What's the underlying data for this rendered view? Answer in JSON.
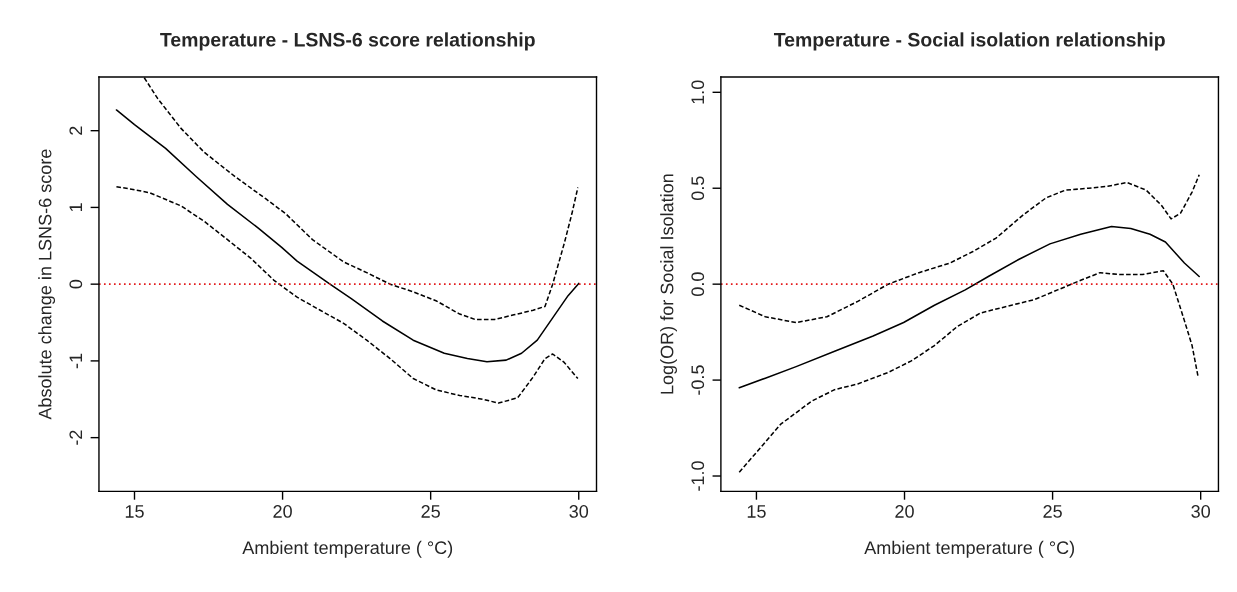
{
  "chart_data": [
    {
      "type": "line",
      "title": "Temperature - LSNS-6 score relationship",
      "xlabel": "Ambient temperature ( °C)",
      "ylabel": "Absolute change in LSNS-6 score",
      "xlim": [
        13.8,
        30.6
      ],
      "xticks": [
        15,
        20,
        25,
        30
      ],
      "ylim": [
        -2.7,
        2.7
      ],
      "yticks": [
        -2,
        -1,
        0,
        1,
        2
      ],
      "grid": false,
      "ref_lines": [
        {
          "axis": "y",
          "value": 0,
          "color": "#e31a1c",
          "line_style": "dotted"
        }
      ],
      "series": [
        {
          "color": "#000000",
          "line_style": "solid",
          "x": [
            14.39,
            15,
            16.05,
            17.09,
            18.14,
            19.18,
            19.97,
            20.49,
            21.6,
            22.32,
            23.37,
            24.41,
            25.46,
            26.24,
            26.9,
            27.55,
            28.07,
            28.6,
            29.12,
            29.64,
            30
          ],
          "values": [
            2.27,
            2.08,
            1.77,
            1.4,
            1.04,
            0.73,
            0.48,
            0.3,
            0,
            -0.19,
            -0.48,
            -0.73,
            -0.9,
            -0.97,
            -1.01,
            -0.99,
            -0.9,
            -0.73,
            -0.44,
            -0.15,
            0.01
          ]
        },
        {
          "color": "#000000",
          "line_style": "dashed",
          "x": [
            15.33,
            15.78,
            16.57,
            17.35,
            18.4,
            19.44,
            20.1,
            21.01,
            22.06,
            22.84,
            23.63,
            24.41,
            25.2,
            25.98,
            26.5,
            27.16,
            27.81,
            28.46,
            28.86,
            29.12,
            29.51,
            29.77,
            29.97
          ],
          "values": [
            2.69,
            2.42,
            2.03,
            1.72,
            1.4,
            1.11,
            0.92,
            0.58,
            0.29,
            0.15,
            0,
            -0.1,
            -0.22,
            -0.39,
            -0.46,
            -0.46,
            -0.4,
            -0.34,
            -0.29,
            0,
            0.53,
            0.92,
            1.26
          ]
        },
        {
          "color": "#000000",
          "line_style": "dashed",
          "x": [
            14.39,
            15,
            15.52,
            16.57,
            17.35,
            18.14,
            18.92,
            19.71,
            20.49,
            21.27,
            22.06,
            22.84,
            23.63,
            24.41,
            25.2,
            25.98,
            26.76,
            27.29,
            27.94,
            28.46,
            28.86,
            29.12,
            29.51,
            29.97
          ],
          "values": [
            1.27,
            1.23,
            1.19,
            1.02,
            0.82,
            0.58,
            0.34,
            0.05,
            -0.17,
            -0.34,
            -0.51,
            -0.73,
            -0.97,
            -1.23,
            -1.38,
            -1.45,
            -1.5,
            -1.55,
            -1.48,
            -1.21,
            -0.97,
            -0.91,
            -1.02,
            -1.23
          ]
        }
      ]
    },
    {
      "type": "line",
      "title": "Temperature - Social isolation relationship",
      "xlabel": "Ambient temperature ( °C)",
      "ylabel": "Log(OR) for Social Isolation",
      "xlim": [
        13.8,
        30.6
      ],
      "xticks": [
        15,
        20,
        25,
        30
      ],
      "ylim": [
        -1.08,
        1.08
      ],
      "yticks": [
        {
          "value": -1,
          "label": "-1.0"
        },
        {
          "value": -0.5,
          "label": "-0.5"
        },
        {
          "value": 0,
          "label": "0.0"
        },
        {
          "value": 0.5,
          "label": "0.5"
        },
        {
          "value": 1,
          "label": "1.0"
        }
      ],
      "grid": false,
      "ref_lines": [
        {
          "axis": "y",
          "value": 0,
          "color": "#e31a1c",
          "line_style": "dotted"
        }
      ],
      "series": [
        {
          "color": "#000000",
          "line_style": "solid",
          "x": [
            14.42,
            15.3,
            16.34,
            17.64,
            18.94,
            19.97,
            21.01,
            22.05,
            22.83,
            23.87,
            24.91,
            25.95,
            26.99,
            27.64,
            28.29,
            28.81,
            29.45,
            29.95
          ],
          "values": [
            -0.54,
            -0.49,
            -0.43,
            -0.35,
            -0.27,
            -0.2,
            -0.11,
            -0.03,
            0.04,
            0.13,
            0.21,
            0.26,
            0.3,
            0.29,
            0.26,
            0.22,
            0.11,
            0.04
          ]
        },
        {
          "color": "#000000",
          "line_style": "dashed",
          "x": [
            14.42,
            15.3,
            16.34,
            17.38,
            18.42,
            19.45,
            20.49,
            21.53,
            22.31,
            23.09,
            24.0,
            24.78,
            25.43,
            26.21,
            26.86,
            27.51,
            28.16,
            28.68,
            29.0,
            29.32,
            29.71,
            29.95
          ],
          "values": [
            -0.11,
            -0.17,
            -0.2,
            -0.17,
            -0.09,
            0,
            0.06,
            0.11,
            0.17,
            0.24,
            0.36,
            0.45,
            0.49,
            0.5,
            0.51,
            0.53,
            0.49,
            0.41,
            0.34,
            0.37,
            0.48,
            0.57
          ]
        },
        {
          "color": "#000000",
          "line_style": "dashed",
          "x": [
            14.42,
            15.04,
            15.82,
            16.86,
            17.64,
            18.42,
            19.45,
            20.23,
            21.01,
            21.79,
            22.57,
            23.61,
            24.39,
            25.17,
            25.95,
            26.6,
            27.25,
            28.03,
            28.74,
            29.06,
            29.45,
            29.71,
            29.91
          ],
          "values": [
            -0.98,
            -0.87,
            -0.73,
            -0.61,
            -0.55,
            -0.52,
            -0.46,
            -0.4,
            -0.32,
            -0.22,
            -0.15,
            -0.11,
            -0.08,
            -0.03,
            0.02,
            0.06,
            0.05,
            0.05,
            0.07,
            0,
            -0.19,
            -0.32,
            -0.48
          ]
        }
      ]
    }
  ]
}
